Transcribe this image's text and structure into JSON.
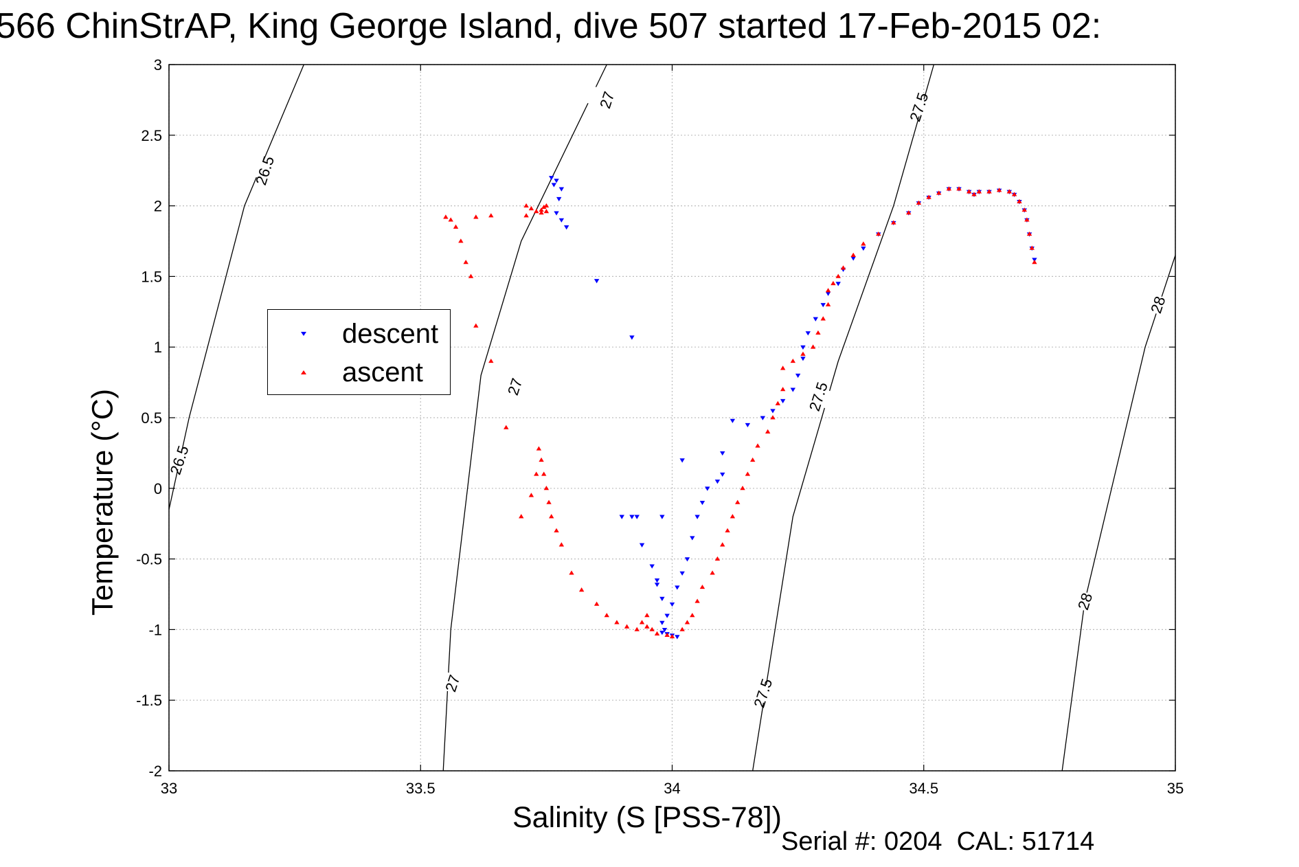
{
  "title": "566 ChinStrAP, King George Island, dive 507 started 17-Feb-2015 02:",
  "footer": {
    "serial": "Serial #: 0204  CAL: 51714"
  },
  "colors": {
    "descent": "#0000ff",
    "ascent": "#ff0000",
    "grid": "#bdbdbd",
    "isopycnal": "#000000"
  },
  "chart_data": {
    "type": "scatter",
    "title": "566 ChinStrAP, King George Island, dive 507 started 17-Feb-2015 02:",
    "xlabel": "Salinity (S [PSS-78])",
    "ylabel": "Temperature (°C)",
    "xlim": [
      33,
      35
    ],
    "ylim": [
      -2,
      3
    ],
    "xticks": [
      33,
      33.5,
      34,
      34.5,
      35
    ],
    "xtick_labels": [
      "33",
      "33.5",
      "34",
      "34.5",
      "35"
    ],
    "yticks": [
      3,
      2.5,
      2,
      1.5,
      1,
      0.5,
      0,
      -0.5,
      -1,
      -1.5,
      -2
    ],
    "ytick_labels": [
      "3",
      "2.5",
      "2",
      "1.5",
      "1",
      "0.5",
      "0",
      "-0.5",
      "-1",
      "-1.5",
      "-2"
    ],
    "grid": true,
    "legend": {
      "placement": "left",
      "entries": [
        "descent",
        "ascent"
      ]
    },
    "isopycnals": [
      {
        "label": "26.5",
        "points": [
          [
            33.268,
            3
          ],
          [
            33.15,
            2.0
          ],
          [
            33.04,
            0.5
          ],
          [
            33,
            -0.15
          ]
        ],
        "label_at": [
          [
            33.19,
            2.25
          ],
          [
            33.02,
            0.2
          ]
        ]
      },
      {
        "label": "27",
        "points": [
          [
            33.87,
            3
          ],
          [
            33.7,
            1.75
          ],
          [
            33.62,
            0.8
          ],
          [
            33.56,
            -1.0
          ],
          [
            33.545,
            -2
          ]
        ],
        "label_at": [
          [
            33.87,
            2.75
          ],
          [
            33.687,
            0.72
          ],
          [
            33.563,
            -1.38
          ]
        ]
      },
      {
        "label": "27.5",
        "points": [
          [
            34.52,
            3
          ],
          [
            34.44,
            2.0
          ],
          [
            34.33,
            0.9
          ],
          [
            34.24,
            -0.2
          ],
          [
            34.16,
            -2
          ]
        ],
        "label_at": [
          [
            34.49,
            2.7
          ],
          [
            34.29,
            0.65
          ],
          [
            34.18,
            -1.45
          ]
        ]
      },
      {
        "label": "28",
        "points": [
          [
            35,
            1.65
          ],
          [
            34.94,
            1.0
          ],
          [
            34.82,
            -0.8
          ],
          [
            34.775,
            -2
          ]
        ],
        "label_at": [
          [
            34.965,
            1.3
          ],
          [
            34.82,
            -0.8
          ]
        ]
      }
    ],
    "series": [
      {
        "name": "descent",
        "marker": "triangle-down",
        "color": "#0000ff",
        "x": [
          34.72,
          34.715,
          34.71,
          34.705,
          34.7,
          34.69,
          34.68,
          34.67,
          34.65,
          34.63,
          34.61,
          34.6,
          34.59,
          34.57,
          34.55,
          34.53,
          34.51,
          34.49,
          34.47,
          34.44,
          34.41,
          34.38,
          34.36,
          34.34,
          34.33,
          34.31,
          34.3,
          34.285,
          34.27,
          34.26,
          34.26,
          34.25,
          34.24,
          34.22,
          34.2,
          34.18,
          34.15,
          34.12,
          34.1,
          34.1,
          34.09,
          34.07,
          34.06,
          34.05,
          34.04,
          34.03,
          34.02,
          34.01,
          34.0,
          33.99,
          33.98,
          33.97,
          33.96,
          33.94,
          33.92,
          33.9,
          33.93,
          33.98,
          34.02,
          34.01,
          34.0,
          33.99,
          33.98,
          33.985,
          33.98,
          33.97,
          33.85,
          33.92,
          33.78,
          33.77,
          33.775,
          33.78,
          33.765,
          33.77,
          33.76,
          33.79
        ],
        "y": [
          1.62,
          1.7,
          1.8,
          1.9,
          1.97,
          2.03,
          2.08,
          2.1,
          2.11,
          2.1,
          2.1,
          2.08,
          2.1,
          2.12,
          2.12,
          2.09,
          2.06,
          2.02,
          1.95,
          1.88,
          1.8,
          1.7,
          1.63,
          1.55,
          1.45,
          1.38,
          1.3,
          1.2,
          1.1,
          1.0,
          0.92,
          0.8,
          0.7,
          0.62,
          0.55,
          0.5,
          0.45,
          0.48,
          0.25,
          0.1,
          0.05,
          0.0,
          -0.1,
          -0.2,
          -0.35,
          -0.5,
          -0.6,
          -0.7,
          -0.82,
          -0.9,
          -0.78,
          -0.68,
          -0.55,
          -0.4,
          -0.2,
          -0.2,
          -0.2,
          -0.2,
          0.2,
          -1.05,
          -1.04,
          -1.03,
          -1.02,
          -1.0,
          -0.95,
          -0.65,
          1.47,
          1.07,
          1.9,
          1.95,
          2.05,
          2.12,
          2.15,
          2.18,
          2.2,
          1.85
        ]
      },
      {
        "name": "ascent",
        "marker": "triangle-up",
        "color": "#ff0000",
        "x": [
          34.72,
          34.715,
          34.71,
          34.705,
          34.7,
          34.69,
          34.68,
          34.67,
          34.65,
          34.63,
          34.61,
          34.6,
          34.59,
          34.57,
          34.55,
          34.53,
          34.51,
          34.49,
          34.47,
          34.44,
          34.41,
          34.38,
          34.36,
          34.34,
          34.33,
          34.32,
          34.31,
          34.31,
          34.3,
          34.29,
          34.28,
          34.26,
          34.24,
          34.22,
          34.22,
          34.21,
          34.2,
          34.19,
          34.17,
          34.16,
          34.15,
          34.14,
          34.13,
          34.12,
          34.11,
          34.1,
          34.09,
          34.08,
          34.06,
          34.05,
          34.04,
          34.03,
          34.02,
          34.0,
          33.99,
          33.97,
          33.96,
          33.95,
          33.95,
          33.94,
          33.93,
          33.91,
          33.89,
          33.87,
          33.85,
          33.82,
          33.8,
          33.78,
          33.77,
          33.76,
          33.755,
          33.75,
          33.745,
          33.74,
          33.735,
          33.73,
          33.72,
          33.7,
          33.67,
          33.64,
          33.61,
          33.6,
          33.59,
          33.58,
          33.57,
          33.56,
          33.55,
          33.61,
          33.64,
          33.71,
          33.74,
          33.73,
          33.72,
          33.71,
          33.74,
          33.745,
          33.75,
          33.75
        ],
        "y": [
          1.6,
          1.7,
          1.8,
          1.9,
          1.97,
          2.03,
          2.08,
          2.1,
          2.11,
          2.1,
          2.1,
          2.08,
          2.1,
          2.12,
          2.12,
          2.09,
          2.06,
          2.02,
          1.95,
          1.88,
          1.8,
          1.73,
          1.65,
          1.56,
          1.5,
          1.45,
          1.4,
          1.3,
          1.2,
          1.1,
          1.0,
          0.95,
          0.9,
          0.85,
          0.7,
          0.6,
          0.5,
          0.4,
          0.3,
          0.2,
          0.1,
          0.0,
          -0.1,
          -0.2,
          -0.3,
          -0.4,
          -0.5,
          -0.6,
          -0.7,
          -0.8,
          -0.9,
          -0.95,
          -1.0,
          -1.05,
          -1.04,
          -1.03,
          -1.0,
          -0.98,
          -0.9,
          -0.95,
          -1.0,
          -0.98,
          -0.95,
          -0.9,
          -0.82,
          -0.72,
          -0.6,
          -0.4,
          -0.3,
          -0.2,
          -0.1,
          0.0,
          0.1,
          0.2,
          0.28,
          0.1,
          -0.05,
          -0.2,
          0.43,
          0.9,
          1.15,
          1.5,
          1.6,
          1.75,
          1.85,
          1.9,
          1.92,
          1.92,
          1.93,
          1.93,
          1.95,
          1.96,
          1.98,
          2.0,
          1.97,
          1.99,
          1.96,
          2.0
        ]
      }
    ]
  }
}
